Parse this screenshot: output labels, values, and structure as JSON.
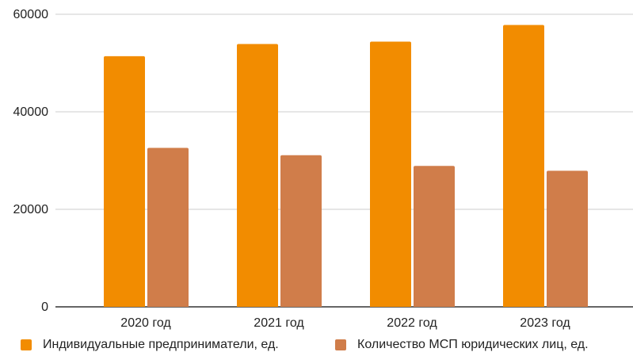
{
  "chart_data": {
    "type": "bar",
    "categories": [
      "2020 год",
      "2021 год",
      "2022 год",
      "2023 год"
    ],
    "series": [
      {
        "name": "Индивидуальные предприниматели, ед.",
        "color": "#f28c00",
        "values": [
          51400,
          53900,
          54400,
          57800
        ]
      },
      {
        "name": "Количество МСП юридических лиц, ед.",
        "color": "#d07d4a",
        "values": [
          32600,
          31100,
          28900,
          27900
        ]
      }
    ],
    "ylim": [
      0,
      60000
    ],
    "yticks": [
      "0",
      "20000",
      "40000",
      "60000"
    ],
    "yticks_values": [
      0,
      20000,
      40000,
      60000
    ],
    "grid": true,
    "legend_position": "bottom-left"
  }
}
